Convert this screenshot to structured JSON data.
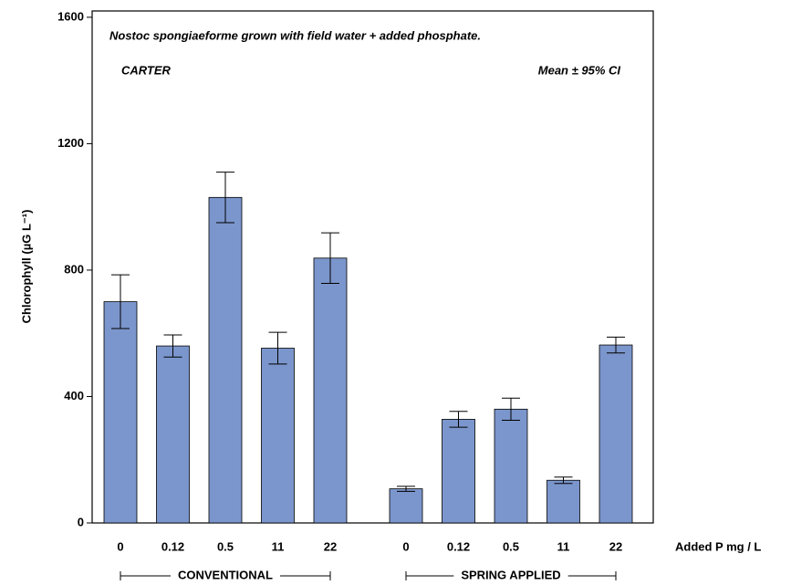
{
  "chart_data": {
    "type": "bar",
    "title": "Nostoc spongiaeforme grown with field water + added phosphate.",
    "site": "CARTER",
    "stat_note": "Mean ± 95% CI",
    "x_label": "Added P mg / L",
    "y_label": "Chlorophyll (µG L⁻¹)",
    "color": "#7b96cc",
    "ylim": [
      0,
      1620
    ],
    "yticks": [
      0,
      400,
      800,
      1200,
      1600
    ],
    "groups": [
      {
        "label": "CONVENTIONAL",
        "categories": [
          "0",
          "0.12",
          "0.5",
          "11",
          "22"
        ],
        "values": [
          700,
          560,
          1030,
          553,
          838
        ],
        "errors": [
          85,
          35,
          80,
          50,
          80
        ]
      },
      {
        "label": "SPRING APPLIED",
        "categories": [
          "0",
          "0.12",
          "0.5",
          "11",
          "22"
        ],
        "values": [
          108,
          328,
          360,
          135,
          563
        ],
        "errors": [
          8,
          25,
          35,
          10,
          25
        ]
      }
    ]
  }
}
